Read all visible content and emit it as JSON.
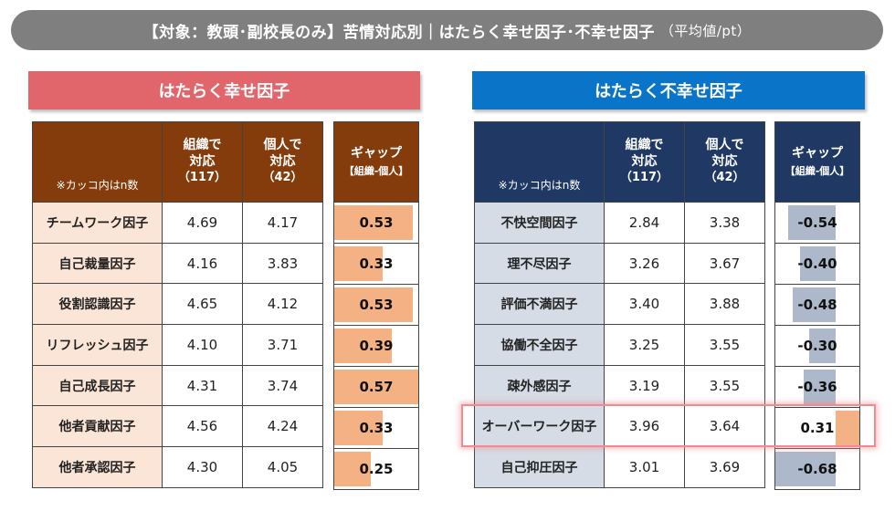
{
  "title": {
    "main": "【対象：教頭･副校長のみ】苦情対応別｜はたらく幸せ因子･不幸せ因子",
    "unit": "（平均値/pt）"
  },
  "headers": {
    "note": "※カッコ内はn数",
    "org_line1": "組織で",
    "org_line2": "対応",
    "org_n": "（117）",
    "ind_line1": "個人で",
    "ind_line2": "対応",
    "ind_n": "（42）",
    "gap_line1": "ギャップ",
    "gap_line2": "【組織-個人】"
  },
  "happy": {
    "heading": "はたらく幸せ因子",
    "rows": [
      {
        "label": "チームワーク因子",
        "org": "4.69",
        "ind": "4.17",
        "gap": "0.53",
        "gap_value": 0.53
      },
      {
        "label": "自己裁量因子",
        "org": "4.16",
        "ind": "3.83",
        "gap": "0.33",
        "gap_value": 0.33
      },
      {
        "label": "役割認識因子",
        "org": "4.65",
        "ind": "4.12",
        "gap": "0.53",
        "gap_value": 0.53
      },
      {
        "label": "リフレッシュ因子",
        "org": "4.10",
        "ind": "3.71",
        "gap": "0.39",
        "gap_value": 0.39
      },
      {
        "label": "自己成長因子",
        "org": "4.31",
        "ind": "3.74",
        "gap": "0.57",
        "gap_value": 0.57
      },
      {
        "label": "他者貢献因子",
        "org": "4.56",
        "ind": "4.24",
        "gap": "0.33",
        "gap_value": 0.33
      },
      {
        "label": "他者承認因子",
        "org": "4.30",
        "ind": "4.05",
        "gap": "0.25",
        "gap_value": 0.25
      }
    ]
  },
  "unhappy": {
    "heading": "はたらく不幸せ因子",
    "rows": [
      {
        "label": "不快空間因子",
        "org": "2.84",
        "ind": "3.38",
        "gap": "-0.54",
        "gap_value": -0.54
      },
      {
        "label": "理不尽因子",
        "org": "3.26",
        "ind": "3.67",
        "gap": "-0.40",
        "gap_value": -0.4
      },
      {
        "label": "評価不満因子",
        "org": "3.40",
        "ind": "3.88",
        "gap": "-0.48",
        "gap_value": -0.48
      },
      {
        "label": "協働不全因子",
        "org": "3.25",
        "ind": "3.55",
        "gap": "-0.30",
        "gap_value": -0.3
      },
      {
        "label": "疎外感因子",
        "org": "3.19",
        "ind": "3.55",
        "gap": "-0.36",
        "gap_value": -0.36
      },
      {
        "label": "オーバーワーク因子",
        "org": "3.96",
        "ind": "3.64",
        "gap": "0.31",
        "gap_value": 0.31
      },
      {
        "label": "自己抑圧因子",
        "org": "3.01",
        "ind": "3.69",
        "gap": "-0.68",
        "gap_value": -0.68
      }
    ]
  },
  "colors": {
    "happy_header": "#843c0c",
    "happy_banner": "#e0666b",
    "happy_label_bg": "#fbe5d6",
    "happy_bar": "#f4b183",
    "unhappy_header": "#1f3864",
    "unhappy_banner": "#0a74c8",
    "unhappy_label_bg": "#d6dce5",
    "unhappy_bar_negative": "#adb9ca",
    "unhappy_bar_positive": "#f4b183",
    "highlight_border": "#ee8b93"
  }
}
